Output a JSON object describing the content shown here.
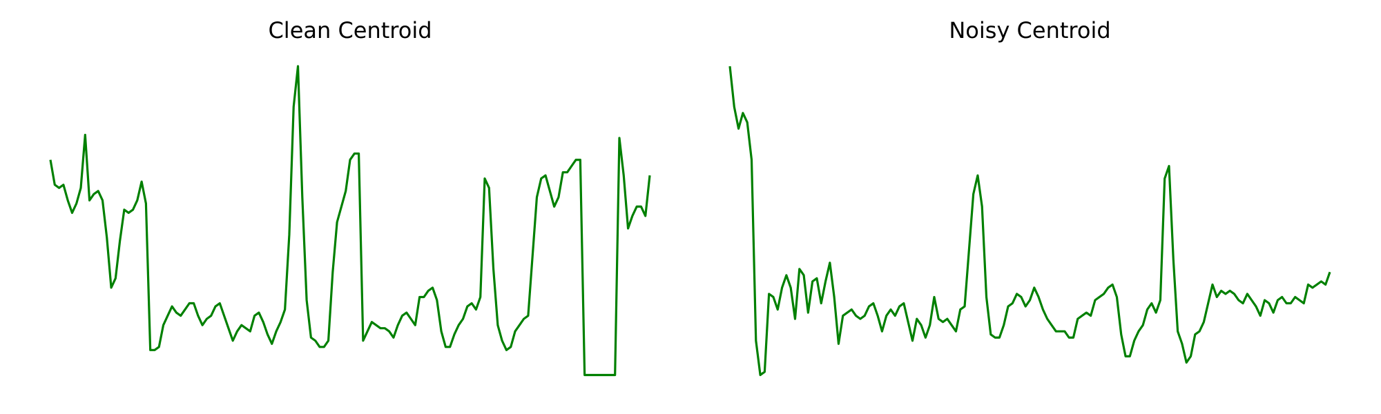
{
  "chart_data": [
    {
      "type": "line",
      "title": "Clean Centroid",
      "color": "#008000",
      "ylim": [
        0,
        100
      ],
      "values": [
        70,
        62,
        61,
        62,
        57,
        53,
        56,
        61,
        78,
        57,
        59,
        60,
        57,
        45,
        29,
        32,
        44,
        54,
        53,
        54,
        57,
        63,
        56,
        9,
        9,
        10,
        17,
        20,
        23,
        21,
        20,
        22,
        24,
        24,
        20,
        17,
        19,
        20,
        23,
        24,
        20,
        16,
        12,
        15,
        17,
        16,
        15,
        20,
        21,
        18,
        14,
        11,
        15,
        18,
        22,
        46,
        87,
        100,
        58,
        25,
        13,
        12,
        10,
        10,
        12,
        34,
        50,
        55,
        60,
        70,
        72,
        72,
        12,
        15,
        18,
        17,
        16,
        16,
        15,
        13,
        17,
        20,
        21,
        19,
        17,
        26,
        26,
        28,
        29,
        25,
        15,
        10,
        10,
        14,
        17,
        19,
        23,
        24,
        22,
        26,
        64,
        61,
        35,
        17,
        12,
        9,
        10,
        15,
        17,
        19,
        20,
        39,
        58,
        64,
        65,
        60,
        55,
        58,
        66,
        66,
        68,
        70,
        70,
        1,
        1,
        1,
        1,
        1,
        1,
        1,
        1,
        77,
        65,
        48,
        52,
        55,
        55,
        52,
        65
      ]
    },
    {
      "type": "line",
      "title": "Noisy Centroid",
      "color": "#008000",
      "ylim": [
        0,
        100
      ],
      "values": [
        100,
        87,
        80,
        85,
        82,
        70,
        12,
        1,
        2,
        27,
        26,
        22,
        29,
        33,
        29,
        19,
        35,
        33,
        21,
        31,
        32,
        24,
        31,
        37,
        26,
        11,
        20,
        21,
        22,
        20,
        19,
        20,
        23,
        24,
        20,
        15,
        20,
        22,
        20,
        23,
        24,
        18,
        12,
        19,
        17,
        13,
        17,
        26,
        19,
        18,
        19,
        17,
        15,
        22,
        23,
        41,
        59,
        65,
        55,
        26,
        14,
        13,
        13,
        17,
        23,
        24,
        27,
        26,
        23,
        25,
        29,
        26,
        22,
        19,
        17,
        15,
        15,
        15,
        13,
        13,
        19,
        20,
        21,
        20,
        25,
        26,
        27,
        29,
        30,
        26,
        14,
        7,
        7,
        12,
        15,
        17,
        22,
        24,
        21,
        25,
        64,
        68,
        38,
        15,
        11,
        5,
        7,
        14,
        15,
        18,
        24,
        30,
        26,
        28,
        27,
        28,
        27,
        25,
        24,
        27,
        25,
        23,
        20,
        25,
        24,
        21,
        25,
        26,
        24,
        24,
        26,
        25,
        24,
        30,
        29,
        30,
        31,
        30,
        34
      ]
    }
  ]
}
